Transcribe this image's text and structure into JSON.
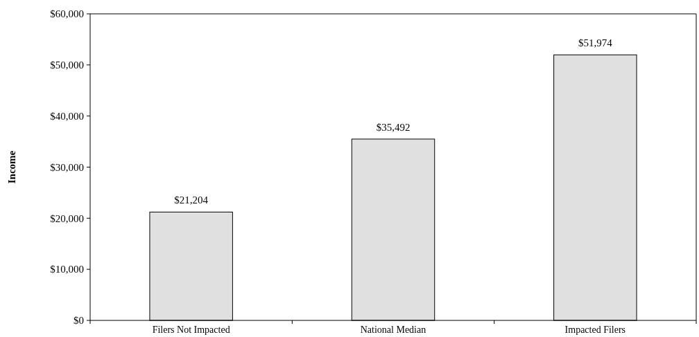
{
  "chart_data": {
    "type": "bar",
    "ylabel": "Income",
    "categories": [
      "Filers Not Impacted",
      "National Median",
      "Impacted Filers"
    ],
    "values": [
      21204,
      35492,
      51974
    ],
    "value_labels": [
      "$21,204",
      "$35,492",
      "$51,974"
    ],
    "color": "#e0e0e0",
    "ylim": [
      0,
      60000
    ],
    "yticks": [
      {
        "value": 0,
        "label": "$0"
      },
      {
        "value": 10000,
        "label": "$10,000"
      },
      {
        "value": 20000,
        "label": "$20,000"
      },
      {
        "value": 30000,
        "label": "$30,000"
      },
      {
        "value": 40000,
        "label": "$40,000"
      },
      {
        "value": 50000,
        "label": "$50,000"
      },
      {
        "value": 60000,
        "label": "$60,000"
      }
    ],
    "grid": false
  }
}
